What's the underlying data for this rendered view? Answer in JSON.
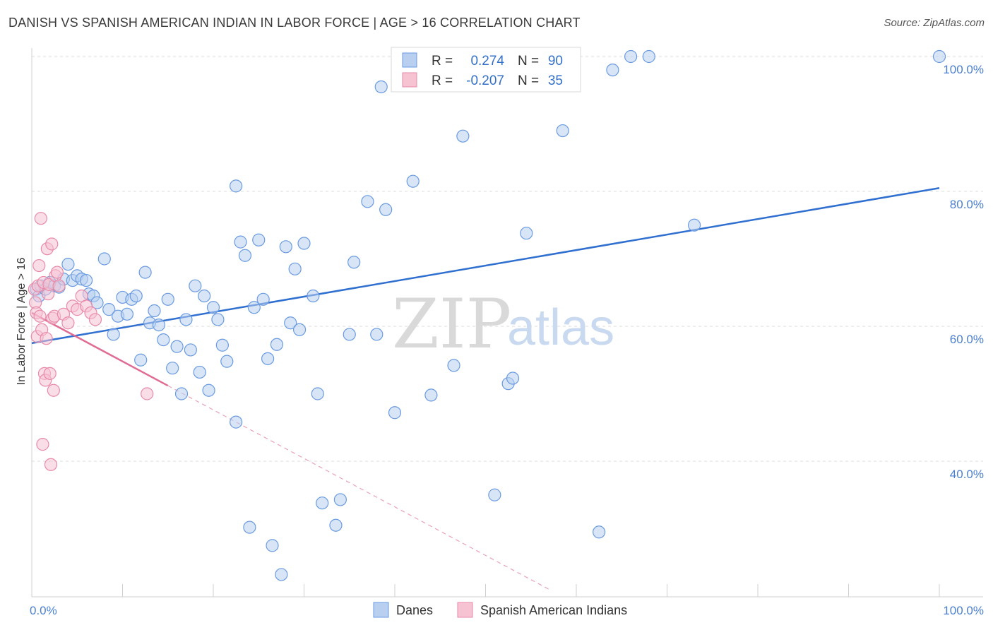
{
  "header": {
    "title": "DANISH VS SPANISH AMERICAN INDIAN IN LABOR FORCE | AGE > 16 CORRELATION CHART",
    "source": "Source: ZipAtlas.com"
  },
  "watermark": {
    "zip": "ZIP",
    "atlas": "atlas"
  },
  "chart_data": {
    "type": "scatter",
    "title": "DANISH VS SPANISH AMERICAN INDIAN IN LABOR FORCE | AGE > 16 CORRELATION CHART",
    "xlabel": "",
    "ylabel": "In Labor Force | Age > 16",
    "xlim": [
      0,
      100
    ],
    "ylim": [
      20,
      102
    ],
    "x_tick_labels": [
      "0.0%",
      "100.0%"
    ],
    "y_ticks": [
      40,
      60,
      80,
      100
    ],
    "y_tick_labels": [
      "40.0%",
      "60.0%",
      "80.0%",
      "100.0%"
    ],
    "grid": true,
    "legend_placement": "top-center",
    "stats": [
      {
        "r_label": "R =",
        "r_value": "0.274",
        "n_label": "N =",
        "n_value": "90"
      },
      {
        "r_label": "R =",
        "r_value": "-0.207",
        "n_label": "N =",
        "n_value": "35"
      }
    ],
    "series": [
      {
        "name": "Danes",
        "color": "#6a9be0",
        "fill": "#b8cff0",
        "trend": {
          "x0": 0,
          "y0": 57.5,
          "x1": 100,
          "y1": 80.5
        },
        "points": [
          [
            0.5,
            65.5
          ],
          [
            0.8,
            64.5
          ],
          [
            1.0,
            66.0
          ],
          [
            1.5,
            65.5
          ],
          [
            2.0,
            66.5
          ],
          [
            2.5,
            66.0
          ],
          [
            3.0,
            65.8
          ],
          [
            3.5,
            67.0
          ],
          [
            4.0,
            69.2
          ],
          [
            4.5,
            66.8
          ],
          [
            5.0,
            67.5
          ],
          [
            5.5,
            67.0
          ],
          [
            6.0,
            66.8
          ],
          [
            6.3,
            64.8
          ],
          [
            6.8,
            64.5
          ],
          [
            7.2,
            63.5
          ],
          [
            8.0,
            70.0
          ],
          [
            8.5,
            62.5
          ],
          [
            9.0,
            58.8
          ],
          [
            9.5,
            61.5
          ],
          [
            10.0,
            64.3
          ],
          [
            10.5,
            61.8
          ],
          [
            11.0,
            64.0
          ],
          [
            11.5,
            64.5
          ],
          [
            12.0,
            55.0
          ],
          [
            12.5,
            68.0
          ],
          [
            13.0,
            60.5
          ],
          [
            13.5,
            62.3
          ],
          [
            14.0,
            60.2
          ],
          [
            14.5,
            58.0
          ],
          [
            15.0,
            64.0
          ],
          [
            15.5,
            53.8
          ],
          [
            16.0,
            57.0
          ],
          [
            16.5,
            50.0
          ],
          [
            17.0,
            61.0
          ],
          [
            17.5,
            56.5
          ],
          [
            18.0,
            66.0
          ],
          [
            18.5,
            53.2
          ],
          [
            19.0,
            64.5
          ],
          [
            19.5,
            50.5
          ],
          [
            20.0,
            62.8
          ],
          [
            20.5,
            61.0
          ],
          [
            21.0,
            57.2
          ],
          [
            21.5,
            54.8
          ],
          [
            22.5,
            45.8
          ],
          [
            22.5,
            80.8
          ],
          [
            23.0,
            72.5
          ],
          [
            23.5,
            70.5
          ],
          [
            24.0,
            30.2
          ],
          [
            24.5,
            62.8
          ],
          [
            25.0,
            72.8
          ],
          [
            25.5,
            64.0
          ],
          [
            26.0,
            55.2
          ],
          [
            26.5,
            27.5
          ],
          [
            27.0,
            57.3
          ],
          [
            27.5,
            23.2
          ],
          [
            28.0,
            71.8
          ],
          [
            28.5,
            60.5
          ],
          [
            29.0,
            68.5
          ],
          [
            29.5,
            59.5
          ],
          [
            30.0,
            72.3
          ],
          [
            31.0,
            64.5
          ],
          [
            31.5,
            50.0
          ],
          [
            32.0,
            33.8
          ],
          [
            33.5,
            30.5
          ],
          [
            34.0,
            34.3
          ],
          [
            35.0,
            58.8
          ],
          [
            35.5,
            69.5
          ],
          [
            37.0,
            78.5
          ],
          [
            38.0,
            58.8
          ],
          [
            38.5,
            95.5
          ],
          [
            39.0,
            77.3
          ],
          [
            40.0,
            47.2
          ],
          [
            42.0,
            81.5
          ],
          [
            44.0,
            49.8
          ],
          [
            46.0,
            100.0
          ],
          [
            46.5,
            54.2
          ],
          [
            47.5,
            88.2
          ],
          [
            49.5,
            100.0
          ],
          [
            51.0,
            35.0
          ],
          [
            52.5,
            51.5
          ],
          [
            53.0,
            52.3
          ],
          [
            54.5,
            73.8
          ],
          [
            58.5,
            89.0
          ],
          [
            62.5,
            29.5
          ],
          [
            64.0,
            98.0
          ],
          [
            66.0,
            100.0
          ],
          [
            68.0,
            100.0
          ],
          [
            73.0,
            75.0
          ],
          [
            100.0,
            100.0
          ]
        ]
      },
      {
        "name": "Spanish American Indians",
        "color": "#e88aa8",
        "fill": "#f6c3d3",
        "trend": {
          "x0": 0,
          "y0": 62.0,
          "x1": 15,
          "y1": 51.2,
          "dash_x1": 57,
          "dash_y1": 21.0
        },
        "points": [
          [
            0.3,
            65.5
          ],
          [
            0.4,
            63.5
          ],
          [
            0.5,
            62.0
          ],
          [
            0.6,
            58.5
          ],
          [
            0.7,
            66.0
          ],
          [
            0.8,
            69.0
          ],
          [
            0.9,
            61.5
          ],
          [
            1.0,
            76.0
          ],
          [
            1.1,
            59.5
          ],
          [
            1.2,
            42.5
          ],
          [
            1.3,
            66.5
          ],
          [
            1.4,
            53.0
          ],
          [
            1.5,
            52.0
          ],
          [
            1.6,
            58.2
          ],
          [
            1.7,
            71.5
          ],
          [
            1.8,
            64.8
          ],
          [
            1.9,
            66.2
          ],
          [
            2.0,
            53.0
          ],
          [
            2.1,
            39.5
          ],
          [
            2.2,
            72.2
          ],
          [
            2.3,
            61.2
          ],
          [
            2.4,
            50.5
          ],
          [
            2.5,
            61.5
          ],
          [
            2.6,
            67.5
          ],
          [
            2.8,
            68.0
          ],
          [
            3.0,
            66.0
          ],
          [
            3.5,
            61.8
          ],
          [
            4.0,
            60.5
          ],
          [
            4.5,
            63.0
          ],
          [
            5.0,
            62.5
          ],
          [
            5.5,
            64.5
          ],
          [
            6.0,
            63.0
          ],
          [
            6.5,
            62.0
          ],
          [
            7.0,
            61.0
          ],
          [
            12.7,
            50.0
          ]
        ]
      }
    ]
  }
}
